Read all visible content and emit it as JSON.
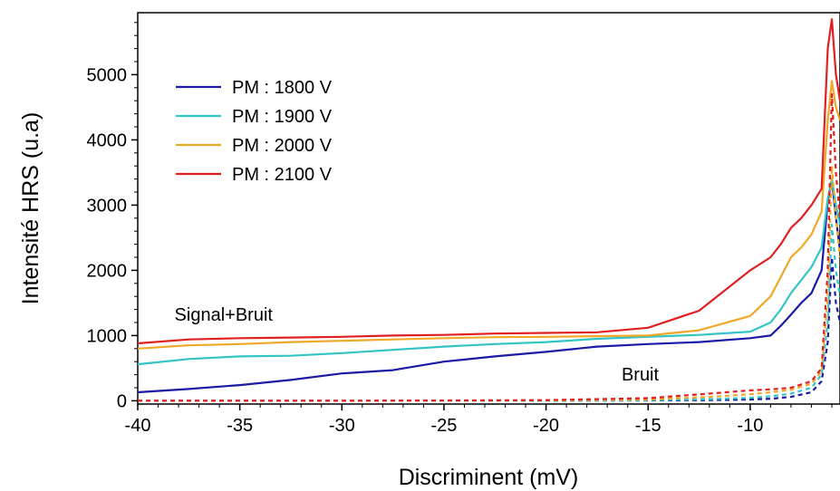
{
  "chart_data": {
    "type": "line",
    "xlabel": "Discriminent (mV)",
    "ylabel": "Intensité HRS (u.a)",
    "xlim": [
      -40,
      -5.6
    ],
    "ylim": [
      -50,
      5950
    ],
    "x_ticks": [
      -40,
      -35,
      -30,
      -25,
      -20,
      -15,
      -10
    ],
    "y_ticks": [
      0,
      1000,
      2000,
      3000,
      4000,
      5000
    ],
    "x_tick_labels": [
      "-40",
      "-35",
      "-30",
      "-25",
      "-20",
      "-15",
      "-10"
    ],
    "y_tick_labels": [
      "0",
      "1000",
      "2000",
      "3000",
      "4000",
      "5000"
    ],
    "legend_position": "top-left",
    "annotations": [
      {
        "text": "Signal+Bruit",
        "x": -38.2,
        "y": 1230
      },
      {
        "text": "Bruit",
        "x": -16.3,
        "y": 310
      }
    ],
    "series": [
      {
        "name": "PM : 1800 V",
        "color": "#1a1aa6",
        "style": "solid",
        "x": [
          -40,
          -37.5,
          -35,
          -32.5,
          -30,
          -27.5,
          -25,
          -22.5,
          -20,
          -17.5,
          -15,
          -12.5,
          -10,
          -9,
          -8.5,
          -8,
          -7.5,
          -7,
          -6.5,
          -6.2,
          -6,
          -5.8,
          -5.6
        ],
        "y": [
          130,
          180,
          240,
          320,
          420,
          470,
          600,
          680,
          750,
          830,
          870,
          900,
          960,
          1000,
          1150,
          1320,
          1500,
          1650,
          2000,
          3050,
          3400,
          2800,
          2300
        ]
      },
      {
        "name": "PM : 1900 V",
        "color": "#33c4c4",
        "style": "solid",
        "x": [
          -40,
          -37.5,
          -35,
          -32.5,
          -30,
          -27.5,
          -25,
          -22.5,
          -20,
          -17.5,
          -15,
          -12.5,
          -10,
          -9,
          -8.5,
          -8,
          -7.5,
          -7,
          -6.5,
          -6.2,
          -6,
          -5.8,
          -5.6
        ],
        "y": [
          560,
          640,
          680,
          690,
          730,
          780,
          830,
          870,
          900,
          950,
          980,
          1010,
          1060,
          1200,
          1400,
          1650,
          1850,
          2050,
          2350,
          3100,
          3400,
          3000,
          2700
        ]
      },
      {
        "name": "PM : 2000 V",
        "color": "#f0a828",
        "style": "solid",
        "x": [
          -40,
          -37.5,
          -35,
          -32.5,
          -30,
          -27.5,
          -25,
          -22.5,
          -20,
          -17.5,
          -15,
          -12.5,
          -10,
          -9,
          -8.5,
          -8,
          -7.5,
          -7,
          -6.5,
          -6.2,
          -6,
          -5.8,
          -5.6
        ],
        "y": [
          800,
          850,
          870,
          900,
          920,
          940,
          960,
          975,
          980,
          990,
          1000,
          1080,
          1300,
          1600,
          1900,
          2200,
          2350,
          2550,
          2900,
          4300,
          4900,
          4500,
          4300
        ]
      },
      {
        "name": "PM : 2100 V",
        "color": "#e02020",
        "style": "solid",
        "x": [
          -40,
          -37.5,
          -35,
          -32.5,
          -30,
          -27.5,
          -25,
          -22.5,
          -20,
          -17.5,
          -15,
          -12.5,
          -10,
          -9,
          -8.5,
          -8,
          -7.5,
          -7,
          -6.5,
          -6.2,
          -6,
          -5.8,
          -5.6
        ],
        "y": [
          880,
          940,
          960,
          970,
          980,
          1000,
          1010,
          1030,
          1040,
          1050,
          1120,
          1380,
          2000,
          2200,
          2400,
          2650,
          2800,
          3000,
          3250,
          5400,
          5850,
          5000,
          4600
        ]
      },
      {
        "name": "",
        "color": "#1a1aa6",
        "style": "dashed",
        "x": [
          -40,
          -30,
          -20,
          -15,
          -12,
          -10,
          -9,
          -8,
          -7,
          -6.5,
          -6.2,
          -6,
          -5.8,
          -5.6
        ],
        "y": [
          0,
          0,
          0,
          5,
          10,
          20,
          30,
          60,
          130,
          300,
          900,
          2200,
          1500,
          1200
        ]
      },
      {
        "name": "",
        "color": "#33c4c4",
        "style": "dashed",
        "x": [
          -40,
          -30,
          -20,
          -15,
          -12,
          -10,
          -9,
          -8,
          -7,
          -6.5,
          -6.2,
          -6,
          -5.8,
          -5.6
        ],
        "y": [
          0,
          0,
          0,
          10,
          25,
          45,
          70,
          110,
          200,
          400,
          1200,
          2700,
          2000,
          1600
        ]
      },
      {
        "name": "",
        "color": "#f0a828",
        "style": "dashed",
        "x": [
          -40,
          -30,
          -20,
          -15,
          -12,
          -10,
          -9,
          -8,
          -7,
          -6.5,
          -6.2,
          -6,
          -5.8,
          -5.6
        ],
        "y": [
          0,
          0,
          5,
          20,
          60,
          100,
          130,
          170,
          260,
          450,
          1600,
          3600,
          2800,
          2200
        ]
      },
      {
        "name": "",
        "color": "#e02020",
        "style": "dashed",
        "x": [
          -40,
          -30,
          -20,
          -15,
          -12,
          -10,
          -9,
          -8,
          -7,
          -6.5,
          -6.2,
          -6,
          -5.8,
          -5.6
        ],
        "y": [
          0,
          0,
          10,
          40,
          110,
          160,
          175,
          200,
          300,
          500,
          2000,
          4700,
          3500,
          2800
        ]
      }
    ]
  }
}
